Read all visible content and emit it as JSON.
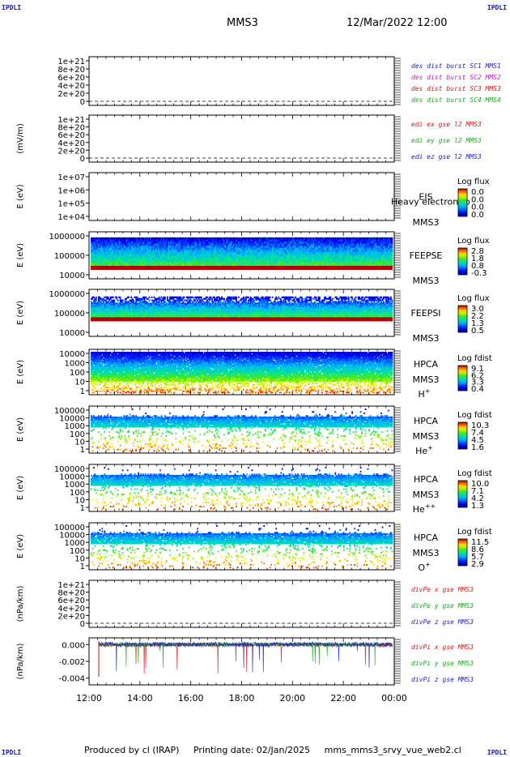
{
  "header": {
    "corner_left": "IPDLI",
    "corner_right": "IPDLI",
    "spacecraft": "MMS3",
    "datetime": "12/Mar/2022 12:00"
  },
  "footer": {
    "producer": "Produced by cl (IRAP)",
    "printing_date": "Printing date: 02/Jan/2025",
    "filename": "mms_mms3_srvy_vue_web2.cl"
  },
  "chart_data": {
    "type": "line",
    "x_ticks": [
      "12:00",
      "14:00",
      "16:00",
      "18:00",
      "20:00",
      "22:00",
      "00:00"
    ],
    "x_range": [
      "12:00",
      "00:00"
    ],
    "panels": [
      {
        "id": "des-dist",
        "type": "line",
        "ylabel": "",
        "yticks": [
          "1e+21",
          "8e+20",
          "6e+20",
          "4e+20",
          "2e+20",
          "0"
        ],
        "ylim": [
          0,
          1e+21
        ],
        "legend": [
          {
            "name": "des dist burst SC1 MMS1",
            "color": "#1c1cc8"
          },
          {
            "name": "des dist burst SC2 MMS2",
            "color": "#cc11cc"
          },
          {
            "name": "des dist burst SC3 MMS3",
            "color": "#d41414"
          },
          {
            "name": "des dist burst SC4 MMS4",
            "color": "#11b011"
          }
        ]
      },
      {
        "id": "edi-e",
        "type": "line",
        "ylabel": "(mV/m)",
        "yticks": [
          "1e+21",
          "8e+20",
          "6e+20",
          "4e+20",
          "2e+20",
          "0"
        ],
        "ylim": [
          0,
          1e+21
        ],
        "legend": [
          {
            "name": "edi ex gse l2 MMS3",
            "color": "#d41414"
          },
          {
            "name": "edi ey gse l2 MMS3",
            "color": "#11b011"
          },
          {
            "name": "edi ez gse l2 MMS3",
            "color": "#1c1cc8"
          }
        ]
      },
      {
        "id": "eis",
        "type": "heatmap",
        "ylabel": "E (eV)",
        "yticks": [
          "1e+07",
          "1e+06",
          "1e+05",
          "1e+04"
        ],
        "ylim": [
          10000,
          10000000
        ],
        "instrument": "EIS",
        "sc": "MMS3",
        "overlay_text": "Heavy electron to",
        "cb_title": "Log flux",
        "cb_ticks": [
          "0.0",
          "0.0",
          "0.0",
          "0.0"
        ],
        "empty": true
      },
      {
        "id": "feepse",
        "type": "heatmap",
        "ylabel": "E (eV)",
        "yticks": [
          "1000000",
          "100000",
          "10000"
        ],
        "ylim": [
          10000,
          1000000
        ],
        "instrument": "FEEPSE",
        "sc": "MMS3",
        "cb_title": "Log flux",
        "cb_ticks": [
          "2.8",
          "1.8",
          "0.8",
          "-0.3"
        ],
        "band_low_eV": 33000,
        "band_high_eV": 580000
      },
      {
        "id": "feepsi",
        "type": "heatmap",
        "ylabel": "E (eV)",
        "yticks": [
          "1000000",
          "100000",
          "10000"
        ],
        "ylim": [
          10000,
          1000000
        ],
        "instrument": "FEEPSI",
        "sc": "MMS3",
        "cb_title": "Log flux",
        "cb_ticks": [
          "3.0",
          "2.2",
          "1.3",
          "0.5"
        ],
        "band_low_eV": 60000,
        "band_high_eV": 500000
      },
      {
        "id": "hpca-h",
        "type": "heatmap",
        "ylabel": "E (eV)",
        "yticks": [
          "10000",
          "1000",
          "100",
          "10",
          "1"
        ],
        "ylim": [
          1,
          40000
        ],
        "instrument": "HPCA",
        "sc": "MMS3",
        "species": "H",
        "species_sup": "+",
        "cb_title": "Log fdist",
        "cb_ticks": [
          "9.1",
          "6.2",
          "3.3",
          "0.4"
        ]
      },
      {
        "id": "hpca-he",
        "type": "heatmap",
        "ylabel": "E (eV)",
        "yticks": [
          "100000",
          "10000",
          "1000",
          "100",
          "10",
          "1"
        ],
        "ylim": [
          1,
          100000
        ],
        "instrument": "HPCA",
        "sc": "MMS3",
        "species": "He",
        "species_sup": "+",
        "cb_title": "Log fdist",
        "cb_ticks": [
          "10.3",
          "7.4",
          "4.5",
          "1.6"
        ]
      },
      {
        "id": "hpca-hepp",
        "type": "heatmap",
        "ylabel": "E (eV)",
        "yticks": [
          "100000",
          "10000",
          "1000",
          "100",
          "10",
          "1"
        ],
        "ylim": [
          1,
          100000
        ],
        "instrument": "HPCA",
        "sc": "MMS3",
        "species": "He",
        "species_sup": "++",
        "cb_title": "Log fdist",
        "cb_ticks": [
          "10.0",
          "7.1",
          "4.2",
          "1.3"
        ]
      },
      {
        "id": "hpca-o",
        "type": "heatmap",
        "ylabel": "E (eV)",
        "yticks": [
          "100000",
          "10000",
          "1000",
          "100",
          "10",
          "1"
        ],
        "ylim": [
          1,
          100000
        ],
        "instrument": "HPCA",
        "sc": "MMS3",
        "species": "O",
        "species_sup": "+",
        "cb_title": "Log fdist",
        "cb_ticks": [
          "11.5",
          "8.6",
          "5.7",
          "2.9"
        ]
      },
      {
        "id": "divpe",
        "type": "line",
        "ylabel": "(nPa/km)",
        "yticks": [
          "1e+21",
          "8e+20",
          "6e+20",
          "4e+20",
          "2e+20",
          "0"
        ],
        "ylim": [
          0,
          1e+21
        ],
        "legend": [
          {
            "name": "divPe x gse MMS3",
            "color": "#d41414"
          },
          {
            "name": "divPe y gse MMS3",
            "color": "#11b011"
          },
          {
            "name": "divPe z gse MMS3",
            "color": "#1c1cc8"
          }
        ]
      },
      {
        "id": "divpi",
        "type": "line",
        "ylabel": "(nPa/km)",
        "yticks": [
          "0.000",
          "-0.002",
          "-0.004"
        ],
        "ytick_values": [
          0.0,
          -0.002,
          -0.004
        ],
        "ylim": [
          -0.0048,
          0.0008
        ],
        "legend": [
          {
            "name": "divPi x gse MMS3",
            "color": "#d41414"
          },
          {
            "name": "divPi y gse MMS3",
            "color": "#11b011"
          },
          {
            "name": "divPi z gse MMS3",
            "color": "#1c1cc8"
          }
        ]
      }
    ]
  }
}
